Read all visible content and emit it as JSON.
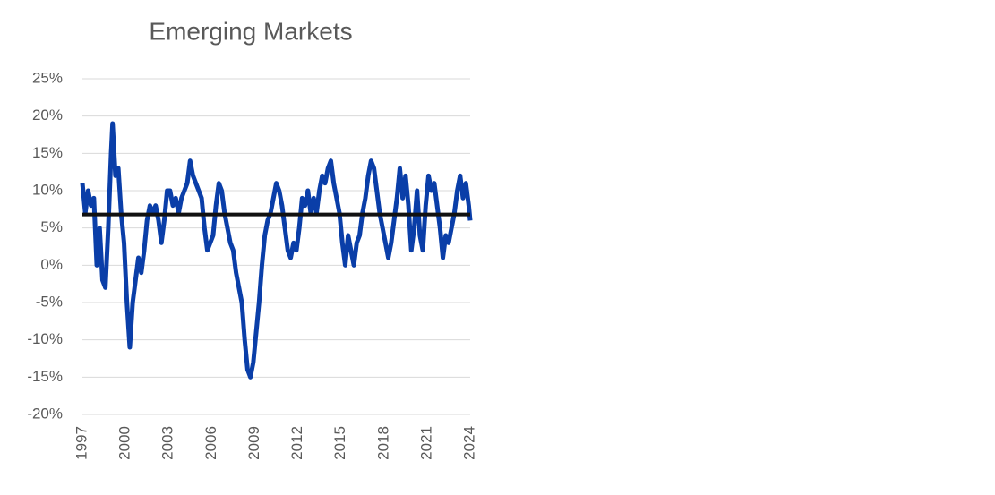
{
  "chart_data": {
    "type": "line",
    "title": "Emerging Markets",
    "x": [
      1997.0,
      1997.2,
      1997.4,
      1997.6,
      1997.8,
      1998.0,
      1998.2,
      1998.4,
      1998.6,
      1998.8,
      1999.0,
      1999.1,
      1999.3,
      1999.5,
      1999.7,
      1999.9,
      2000.1,
      2000.3,
      2000.5,
      2000.7,
      2000.9,
      2001.1,
      2001.3,
      2001.5,
      2001.7,
      2001.9,
      2002.1,
      2002.3,
      2002.5,
      2002.7,
      2002.9,
      2003.1,
      2003.3,
      2003.5,
      2003.7,
      2003.9,
      2004.1,
      2004.3,
      2004.5,
      2004.7,
      2004.9,
      2005.1,
      2005.3,
      2005.5,
      2005.7,
      2005.9,
      2006.1,
      2006.3,
      2006.5,
      2006.7,
      2006.9,
      2007.1,
      2007.3,
      2007.5,
      2007.7,
      2007.9,
      2008.1,
      2008.3,
      2008.5,
      2008.7,
      2008.9,
      2009.1,
      2009.3,
      2009.5,
      2009.7,
      2009.9,
      2010.1,
      2010.3,
      2010.5,
      2010.7,
      2010.9,
      2011.1,
      2011.3,
      2011.5,
      2011.7,
      2011.9,
      2012.1,
      2012.3,
      2012.5,
      2012.7,
      2012.9,
      2013.1,
      2013.3,
      2013.5,
      2013.7,
      2013.9,
      2014.1,
      2014.3,
      2014.5,
      2014.7,
      2014.9,
      2015.1,
      2015.3,
      2015.5,
      2015.7,
      2015.9,
      2016.1,
      2016.3,
      2016.5,
      2016.7,
      2016.9,
      2017.1,
      2017.3,
      2017.5,
      2017.7,
      2017.9,
      2018.1,
      2018.3,
      2018.5,
      2018.7,
      2018.9,
      2019.1,
      2019.3,
      2019.5,
      2019.7,
      2019.9,
      2020.1,
      2020.3,
      2020.5,
      2020.7,
      2020.9,
      2021.1,
      2021.3,
      2021.5,
      2021.7,
      2021.9,
      2022.1,
      2022.3,
      2022.5,
      2022.7,
      2022.9,
      2023.1,
      2023.3,
      2023.5,
      2023.7,
      2023.9,
      2024.0
    ],
    "series": [
      {
        "color": "#0a3ea8",
        "values": [
          11,
          7,
          10,
          8,
          9,
          0,
          5,
          -2,
          -3,
          5,
          15,
          19,
          12,
          13,
          7,
          3,
          -5,
          -11,
          -5,
          -2,
          1,
          -1,
          2,
          6,
          8,
          7,
          8,
          6,
          3,
          6,
          10,
          10,
          8,
          9,
          7,
          9,
          10,
          11,
          14,
          12,
          11,
          10,
          9,
          5,
          2,
          3,
          4,
          8,
          11,
          10,
          7,
          5,
          3,
          2,
          -1,
          -3,
          -5,
          -10,
          -14,
          -15,
          -13,
          -9,
          -5,
          0,
          4,
          6,
          7,
          9,
          11,
          10,
          8,
          5,
          2,
          1,
          3,
          2,
          5,
          9,
          8,
          10,
          7,
          9,
          7,
          10,
          12,
          11,
          13,
          14,
          11,
          9,
          7,
          3,
          0,
          4,
          2,
          0,
          3,
          4,
          7,
          9,
          12,
          14,
          13,
          10,
          7,
          5,
          3,
          1,
          3,
          6,
          9,
          13,
          9,
          12,
          8,
          2,
          5,
          10,
          4,
          2,
          8,
          12,
          10,
          11,
          8,
          5,
          1,
          4,
          3,
          5,
          7,
          10,
          12,
          9,
          11,
          8,
          6
        ]
      }
    ],
    "reference_line": {
      "value": 6.8,
      "color": "#111111"
    },
    "xlim": [
      1997,
      2024
    ],
    "xticks": [
      1997,
      2000,
      2003,
      2006,
      2009,
      2012,
      2015,
      2018,
      2021,
      2024
    ],
    "ylim": [
      -20,
      25
    ],
    "yticks": [
      {
        "value": -20,
        "label": "-20%"
      },
      {
        "value": -15,
        "label": "-15%"
      },
      {
        "value": -10,
        "label": "-10%"
      },
      {
        "value": -5,
        "label": "-5%"
      },
      {
        "value": 0,
        "label": "0%"
      },
      {
        "value": 5,
        "label": "5%"
      },
      {
        "value": 10,
        "label": "10%"
      },
      {
        "value": 15,
        "label": "15%"
      },
      {
        "value": 20,
        "label": "20%"
      },
      {
        "value": 25,
        "label": "25%"
      }
    ],
    "grid": true
  }
}
